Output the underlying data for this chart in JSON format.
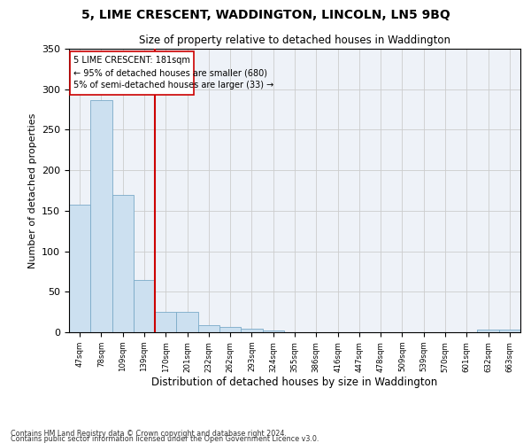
{
  "title1": "5, LIME CRESCENT, WADDINGTON, LINCOLN, LN5 9BQ",
  "title2": "Size of property relative to detached houses in Waddington",
  "xlabel": "Distribution of detached houses by size in Waddington",
  "ylabel": "Number of detached properties",
  "footnote1": "Contains HM Land Registry data © Crown copyright and database right 2024.",
  "footnote2": "Contains public sector information licensed under the Open Government Licence v3.0.",
  "annotation_line1": "5 LIME CRESCENT: 181sqm",
  "annotation_line2": "← 95% of detached houses are smaller (680)",
  "annotation_line3": "5% of semi-detached houses are larger (33) →",
  "bar_labels": [
    "47sqm",
    "78sqm",
    "109sqm",
    "139sqm",
    "170sqm",
    "201sqm",
    "232sqm",
    "262sqm",
    "293sqm",
    "324sqm",
    "355sqm",
    "386sqm",
    "416sqm",
    "447sqm",
    "478sqm",
    "509sqm",
    "539sqm",
    "570sqm",
    "601sqm",
    "632sqm",
    "663sqm"
  ],
  "bar_heights": [
    157,
    287,
    170,
    65,
    25,
    25,
    9,
    7,
    4,
    2,
    0,
    0,
    0,
    0,
    0,
    0,
    0,
    0,
    0,
    3,
    3
  ],
  "bar_color": "#cce0f0",
  "bar_edge_color": "#7aaac8",
  "vline_x": 3.5,
  "vline_color": "#cc0000",
  "grid_color": "#cccccc",
  "background_color": "#eef2f8",
  "ylim": [
    0,
    350
  ],
  "yticks": [
    0,
    50,
    100,
    150,
    200,
    250,
    300,
    350
  ]
}
